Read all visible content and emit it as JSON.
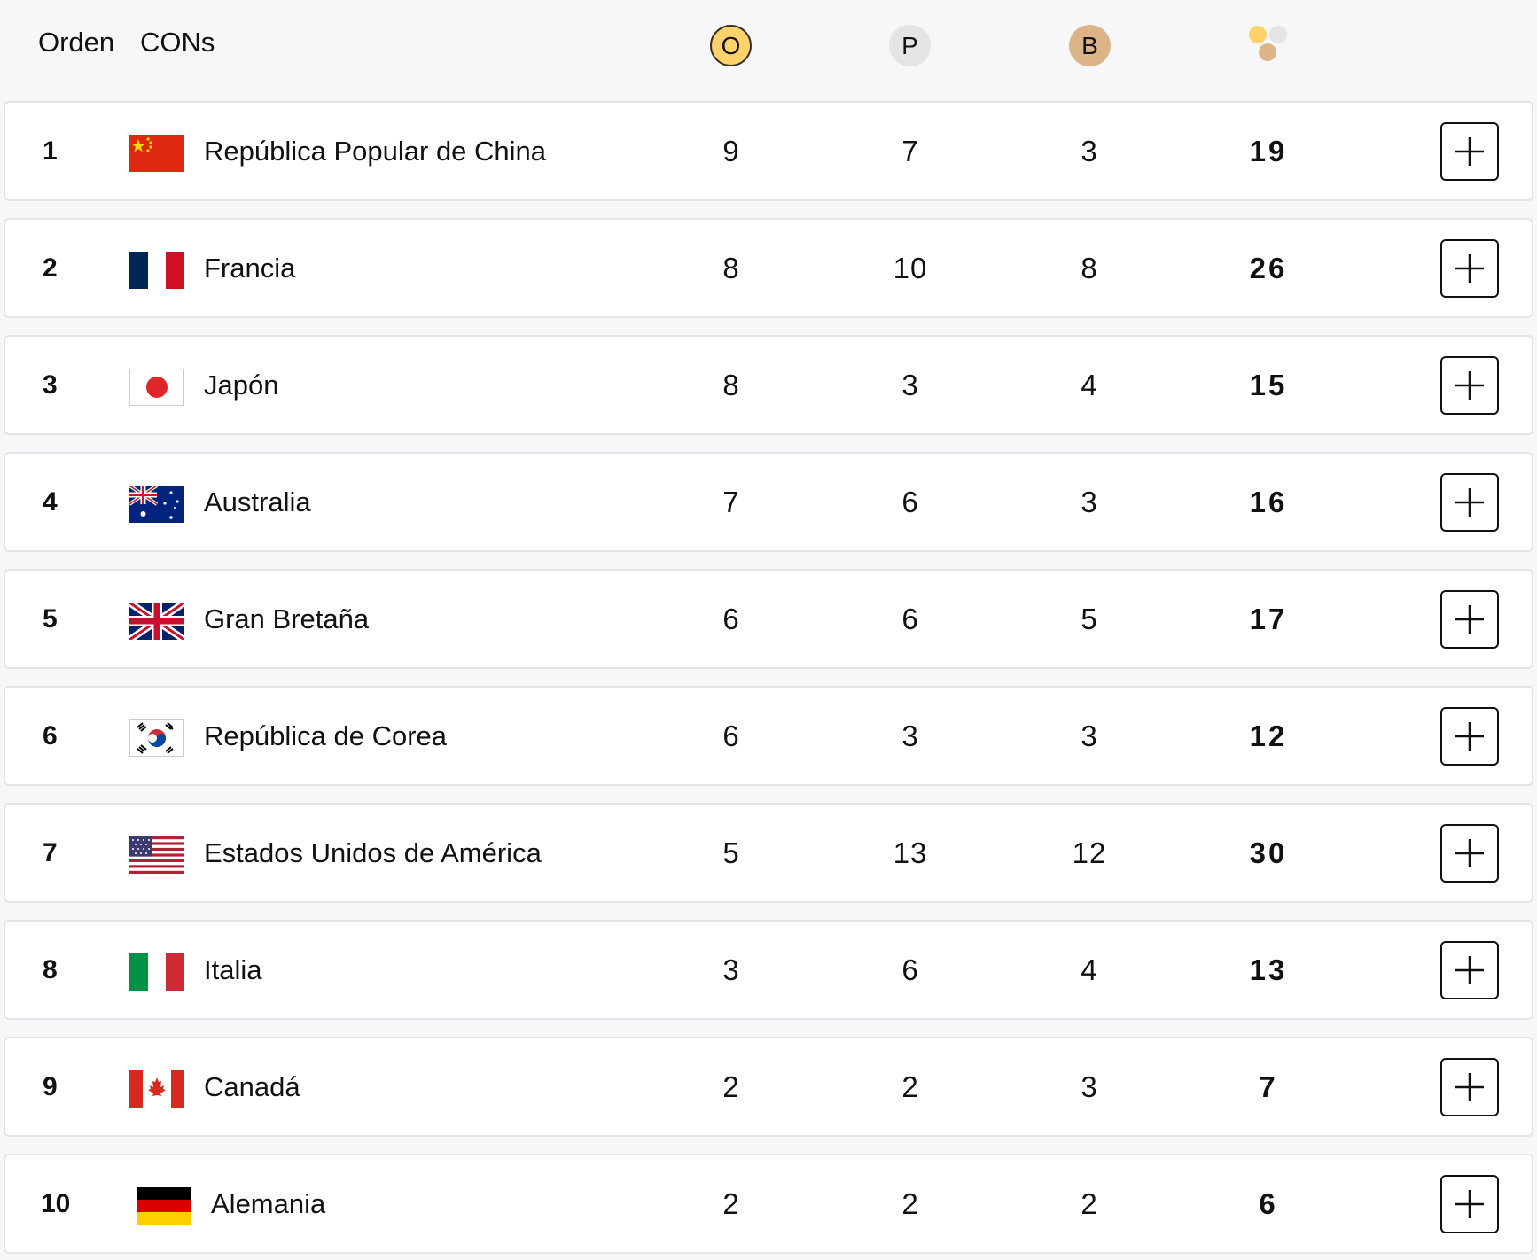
{
  "header": {
    "rank_label": "Orden",
    "noc_label": "CONs",
    "gold_label": "O",
    "silver_label": "P",
    "bronze_label": "B",
    "total_icon": "medals-total-icon"
  },
  "colors": {
    "gold": "#ffd36b",
    "silver": "#e4e4e6",
    "bronze": "#ddb488",
    "row_border": "#e4e4e8",
    "background": "#f7f7f9"
  },
  "rows": [
    {
      "rank": "1",
      "flag": "china-flag-icon",
      "name": "República Popular de China",
      "gold": "9",
      "silver": "7",
      "bronze": "3",
      "total": "19"
    },
    {
      "rank": "2",
      "flag": "france-flag-icon",
      "name": "Francia",
      "gold": "8",
      "silver": "10",
      "bronze": "8",
      "total": "26"
    },
    {
      "rank": "3",
      "flag": "japan-flag-icon",
      "name": "Japón",
      "gold": "8",
      "silver": "3",
      "bronze": "4",
      "total": "15"
    },
    {
      "rank": "4",
      "flag": "australia-flag-icon",
      "name": "Australia",
      "gold": "7",
      "silver": "6",
      "bronze": "3",
      "total": "16"
    },
    {
      "rank": "5",
      "flag": "great-britain-flag-icon",
      "name": "Gran Bretaña",
      "gold": "6",
      "silver": "6",
      "bronze": "5",
      "total": "17"
    },
    {
      "rank": "6",
      "flag": "korea-flag-icon",
      "name": "República de Corea",
      "gold": "6",
      "silver": "3",
      "bronze": "3",
      "total": "12"
    },
    {
      "rank": "7",
      "flag": "usa-flag-icon",
      "name": "Estados Unidos de América",
      "gold": "5",
      "silver": "13",
      "bronze": "12",
      "total": "30"
    },
    {
      "rank": "8",
      "flag": "italy-flag-icon",
      "name": "Italia",
      "gold": "3",
      "silver": "6",
      "bronze": "4",
      "total": "13"
    },
    {
      "rank": "9",
      "flag": "canada-flag-icon",
      "name": "Canadá",
      "gold": "2",
      "silver": "2",
      "bronze": "3",
      "total": "7"
    },
    {
      "rank": "10",
      "flag": "germany-flag-icon",
      "name": "Alemania",
      "gold": "2",
      "silver": "2",
      "bronze": "2",
      "total": "6"
    }
  ],
  "expand_icon": "plus-icon"
}
